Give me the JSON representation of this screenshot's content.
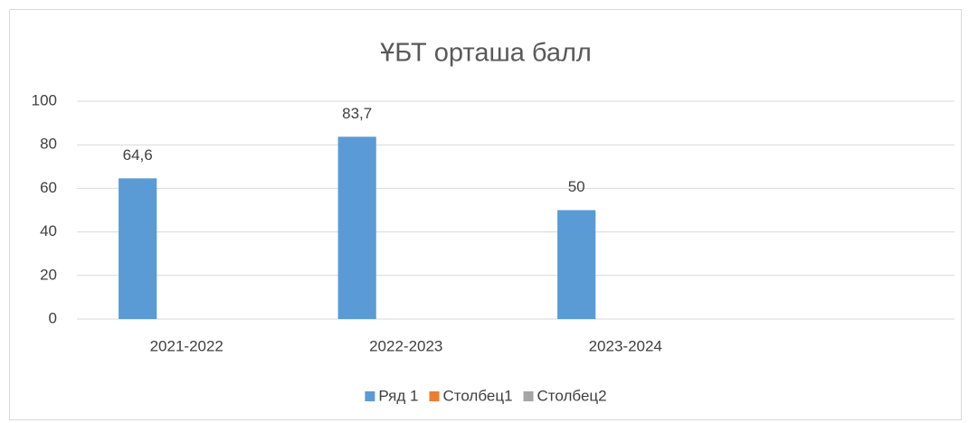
{
  "chart_data": {
    "type": "bar",
    "title": "ҰБТ орташа балл",
    "categories": [
      "2021-2022",
      "2022-2023",
      "2023-2024",
      null
    ],
    "series": [
      {
        "name": "Ряд 1",
        "color": "#5b9bd5",
        "values": [
          64.6,
          83.7,
          50,
          null
        ],
        "value_labels": [
          "64,6",
          "83,7",
          "50",
          null
        ]
      },
      {
        "name": "Столбец1",
        "color": "#ed7d31",
        "values": [
          null,
          null,
          null,
          null
        ]
      },
      {
        "name": "Столбец2",
        "color": "#a5a5a5",
        "values": [
          null,
          null,
          null,
          null
        ]
      }
    ],
    "ylim": [
      0,
      100
    ],
    "yticks": [
      0,
      20,
      40,
      60,
      80,
      100
    ],
    "grid": true,
    "legend": "bottom"
  }
}
